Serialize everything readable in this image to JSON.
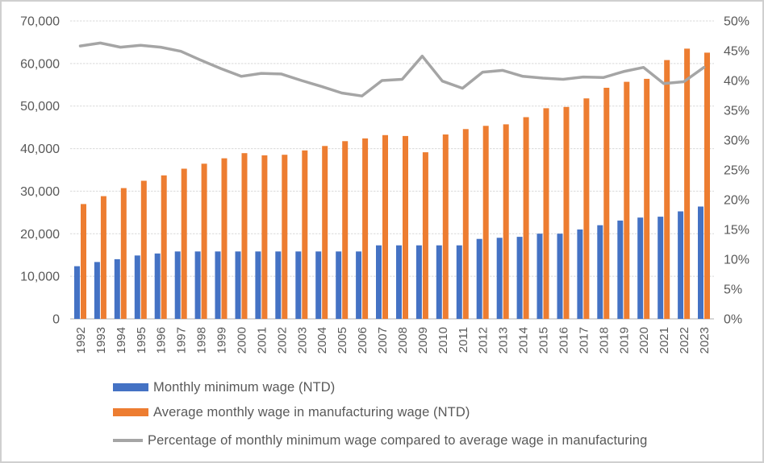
{
  "chart_data": {
    "type": "bar",
    "subtype": "combo-bar-line-dual-axis",
    "title": "",
    "xlabel": "",
    "ylabel": "",
    "grid": true,
    "legend_position": "bottom-left",
    "categories": [
      "1992",
      "1993",
      "1994",
      "1995",
      "1996",
      "1997",
      "1998",
      "1999",
      "2000",
      "2001",
      "2002",
      "2003",
      "2004",
      "2005",
      "2006",
      "2007",
      "2008",
      "2009",
      "2010",
      "2011",
      "2012",
      "2013",
      "2014",
      "2015",
      "2016",
      "2017",
      "2018",
      "2019",
      "2020",
      "2021",
      "2022",
      "2023"
    ],
    "series": [
      {
        "name": "Monthly minimum wage (NTD)",
        "type": "bar",
        "axis": "left",
        "color": "#4472C4",
        "values": [
          12365,
          13350,
          14010,
          14880,
          15360,
          15840,
          15840,
          15840,
          15840,
          15840,
          15840,
          15840,
          15840,
          15840,
          15840,
          17280,
          17280,
          17280,
          17280,
          17280,
          18780,
          19047,
          19273,
          20008,
          20008,
          21009,
          22000,
          23100,
          23800,
          24000,
          25250,
          26400
        ]
      },
      {
        "name": "Average monthly wage in manufacturing wage (NTD)",
        "type": "bar",
        "axis": "left",
        "color": "#ED7D31",
        "values": [
          26972,
          28829,
          30727,
          32441,
          33715,
          35275,
          36465,
          37716,
          38940,
          38420,
          38565,
          39583,
          40611,
          41751,
          42393,
          43169,
          42964,
          39152,
          43322,
          44600,
          45350,
          45700,
          47400,
          49500,
          49800,
          51800,
          54300,
          55700,
          56400,
          60800,
          63500,
          62550
        ]
      },
      {
        "name": "Percentage of monthly minimum wage compared to average wage in manufacturing",
        "type": "line",
        "axis": "right",
        "color": "#A5A5A5",
        "values": [
          45.8,
          46.3,
          45.6,
          45.9,
          45.6,
          44.9,
          43.4,
          42.0,
          40.7,
          41.2,
          41.1,
          40.0,
          39.0,
          37.9,
          37.4,
          40.0,
          40.2,
          44.1,
          39.9,
          38.7,
          41.4,
          41.7,
          40.7,
          40.4,
          40.2,
          40.6,
          40.5,
          41.5,
          42.2,
          39.5,
          39.8,
          42.2
        ]
      }
    ],
    "left_axis": {
      "min": 0,
      "max": 70000,
      "step": 10000,
      "tick_labels": [
        "0",
        "10,000",
        "20,000",
        "30,000",
        "40,000",
        "50,000",
        "60,000",
        "70,000"
      ]
    },
    "right_axis": {
      "min": 0,
      "max": 50,
      "step": 5,
      "tick_labels": [
        "0%",
        "5%",
        "10%",
        "15%",
        "20%",
        "25%",
        "30%",
        "35%",
        "40%",
        "45%",
        "50%"
      ]
    }
  },
  "legend": {
    "items": [
      {
        "label": "Monthly minimum wage (NTD)",
        "color": "#4472C4",
        "marker": "rect"
      },
      {
        "label": "Average monthly wage in manufacturing wage (NTD)",
        "color": "#ED7D31",
        "marker": "rect"
      },
      {
        "label": "Percentage of monthly minimum wage compared to average wage in manufacturing",
        "color": "#A5A5A5",
        "marker": "line"
      }
    ]
  },
  "colors": {
    "gridline": "#D9D9D9",
    "axis_line": "#BFBFBF",
    "axis_text": "#595959",
    "background": "#FFFFFF"
  }
}
